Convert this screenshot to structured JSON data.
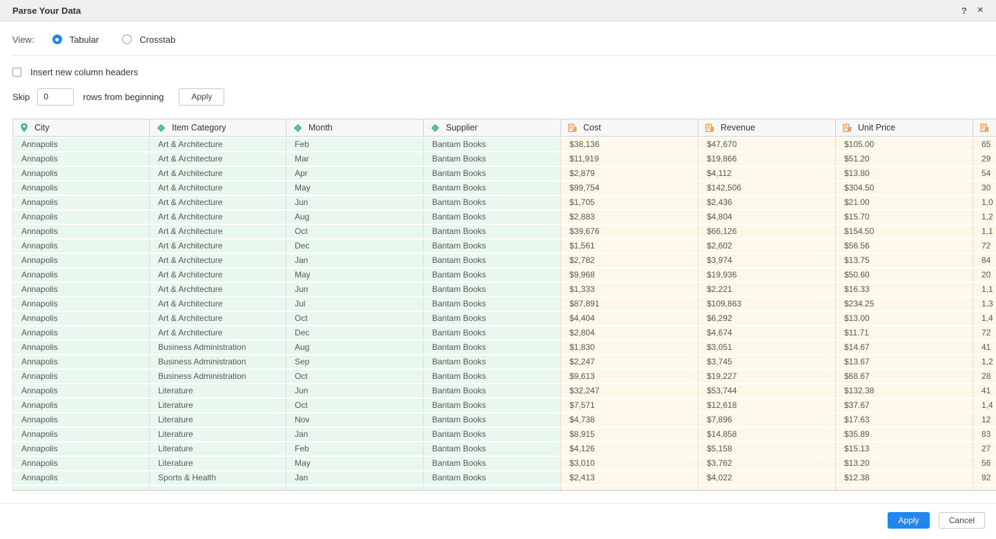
{
  "title_bar": {
    "title": "Parse Your Data",
    "help": "?",
    "close": "✕"
  },
  "view": {
    "label": "View:",
    "options": [
      {
        "label": "Tabular",
        "selected": true
      },
      {
        "label": "Crosstab",
        "selected": false
      }
    ]
  },
  "insert_headers": {
    "label": "Insert new column headers",
    "checked": false
  },
  "skip": {
    "label": "Skip",
    "value": "0",
    "suffix": "rows from beginning",
    "apply": "Apply"
  },
  "table": {
    "columns": [
      {
        "label": "City",
        "icon": "location-pin-icon",
        "kind": "dim"
      },
      {
        "label": "Item Category",
        "icon": "diamond-icon",
        "kind": "dim"
      },
      {
        "label": "Month",
        "icon": "diamond-icon",
        "kind": "dim"
      },
      {
        "label": "Supplier",
        "icon": "diamond-icon",
        "kind": "dim"
      },
      {
        "label": "Cost",
        "icon": "number-column-icon",
        "kind": "num"
      },
      {
        "label": "Revenue",
        "icon": "number-column-icon",
        "kind": "num"
      },
      {
        "label": "Unit Price",
        "icon": "number-column-icon",
        "kind": "num"
      },
      {
        "label": "",
        "icon": "number-column-icon",
        "kind": "num"
      }
    ],
    "rows": [
      [
        "Annapolis",
        "Art & Architecture",
        "Feb",
        "Bantam Books",
        "$38,136",
        "$47,670",
        "$105.00",
        "65"
      ],
      [
        "Annapolis",
        "Art & Architecture",
        "Mar",
        "Bantam Books",
        "$11,919",
        "$19,866",
        "$51.20",
        "29"
      ],
      [
        "Annapolis",
        "Art & Architecture",
        "Apr",
        "Bantam Books",
        "$2,879",
        "$4,112",
        "$13.80",
        "54"
      ],
      [
        "Annapolis",
        "Art & Architecture",
        "May",
        "Bantam Books",
        "$99,754",
        "$142,506",
        "$304.50",
        "30"
      ],
      [
        "Annapolis",
        "Art & Architecture",
        "Jun",
        "Bantam Books",
        "$1,705",
        "$2,436",
        "$21.00",
        "1,0"
      ],
      [
        "Annapolis",
        "Art & Architecture",
        "Aug",
        "Bantam Books",
        "$2,883",
        "$4,804",
        "$15.70",
        "1,2"
      ],
      [
        "Annapolis",
        "Art & Architecture",
        "Oct",
        "Bantam Books",
        "$39,676",
        "$66,126",
        "$154.50",
        "1,1"
      ],
      [
        "Annapolis",
        "Art & Architecture",
        "Dec",
        "Bantam Books",
        "$1,561",
        "$2,602",
        "$56.56",
        "72"
      ],
      [
        "Annapolis",
        "Art & Architecture",
        "Jan",
        "Bantam Books",
        "$2,782",
        "$3,974",
        "$13.75",
        "84"
      ],
      [
        "Annapolis",
        "Art & Architecture",
        "May",
        "Bantam Books",
        "$9,968",
        "$19,936",
        "$50.60",
        "20"
      ],
      [
        "Annapolis",
        "Art & Architecture",
        "Jun",
        "Bantam Books",
        "$1,333",
        "$2,221",
        "$16.33",
        "1,1"
      ],
      [
        "Annapolis",
        "Art & Architecture",
        "Jul",
        "Bantam Books",
        "$87,891",
        "$109,863",
        "$234.25",
        "1,3"
      ],
      [
        "Annapolis",
        "Art & Architecture",
        "Oct",
        "Bantam Books",
        "$4,404",
        "$6,292",
        "$13.00",
        "1,4"
      ],
      [
        "Annapolis",
        "Art & Architecture",
        "Dec",
        "Bantam Books",
        "$2,804",
        "$4,674",
        "$11.71",
        "72"
      ],
      [
        "Annapolis",
        "Business Administration",
        "Aug",
        "Bantam Books",
        "$1,830",
        "$3,051",
        "$14.67",
        "41"
      ],
      [
        "Annapolis",
        "Business Administration",
        "Sep",
        "Bantam Books",
        "$2,247",
        "$3,745",
        "$13.67",
        "1,2"
      ],
      [
        "Annapolis",
        "Business Administration",
        "Oct",
        "Bantam Books",
        "$9,613",
        "$19,227",
        "$68.67",
        "28"
      ],
      [
        "Annapolis",
        "Literature",
        "Jun",
        "Bantam Books",
        "$32,247",
        "$53,744",
        "$132.38",
        "41"
      ],
      [
        "Annapolis",
        "Literature",
        "Oct",
        "Bantam Books",
        "$7,571",
        "$12,618",
        "$37.67",
        "1,4"
      ],
      [
        "Annapolis",
        "Literature",
        "Nov",
        "Bantam Books",
        "$4,738",
        "$7,896",
        "$17.63",
        "12"
      ],
      [
        "Annapolis",
        "Literature",
        "Jan",
        "Bantam Books",
        "$8,915",
        "$14,858",
        "$35.89",
        "83"
      ],
      [
        "Annapolis",
        "Literature",
        "Feb",
        "Bantam Books",
        "$4,126",
        "$5,158",
        "$15.13",
        "27"
      ],
      [
        "Annapolis",
        "Literature",
        "May",
        "Bantam Books",
        "$3,010",
        "$3,762",
        "$13.20",
        "56"
      ],
      [
        "Annapolis",
        "Sports & Health",
        "Jan",
        "Bantam Books",
        "$2,413",
        "$4,022",
        "$12.38",
        "92"
      ]
    ],
    "partial_row": [
      "",
      "",
      "",
      "",
      "",
      "",
      "",
      ""
    ]
  },
  "footer": {
    "apply": "Apply",
    "cancel": "Cancel"
  },
  "colors": {
    "accent_blue": "#2286f0",
    "dimension_green": "#3cbb8e",
    "measure_orange": "#ef9340",
    "dim_cell_bg": "#e8f8ef",
    "num_cell_bg": "#fdf8e8"
  }
}
